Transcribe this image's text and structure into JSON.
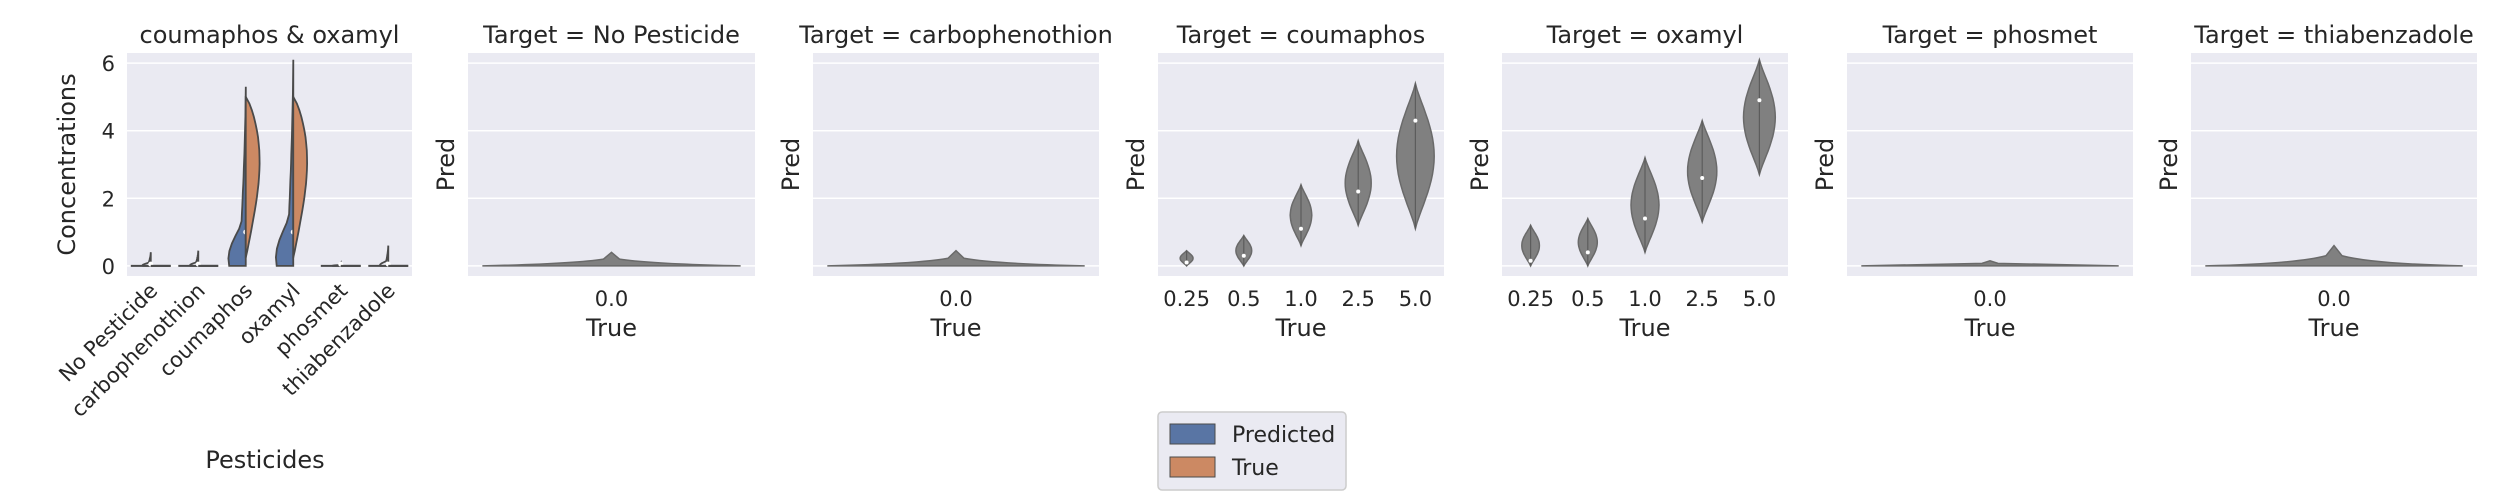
{
  "figure": {
    "legend": {
      "entries": [
        {
          "label": "Predicted",
          "color": "#5975a4"
        },
        {
          "label": "True",
          "color": "#cc8963"
        }
      ]
    }
  },
  "chart_data": [
    {
      "type": "violin",
      "title": "coumaphos & oxamyl",
      "xlabel": "Pesticides",
      "ylabel": "Concentrations",
      "categories": [
        "No Pesticide",
        "carbophenothion",
        "coumaphos",
        "oxamyl",
        "phosmet",
        "thiabenzadole"
      ],
      "yticks": [
        "0",
        "2",
        "4",
        "6"
      ],
      "ylim": [
        -0.3,
        6.3
      ],
      "split": true,
      "series": [
        {
          "name": "Predicted",
          "color": "#5975a4",
          "min": [
            0.0,
            0.0,
            0.0,
            0.0,
            0.0,
            0.0
          ],
          "max": [
            0.4,
            0.45,
            5.3,
            6.1,
            0.1,
            0.6
          ],
          "median": [
            0.05,
            0.05,
            1.0,
            1.0,
            0.05,
            0.05
          ]
        },
        {
          "name": "True",
          "color": "#cc8963",
          "min": [
            0.0,
            0.0,
            0.25,
            0.25,
            0.0,
            0.0
          ],
          "max": [
            0.0,
            0.0,
            5.0,
            5.0,
            0.0,
            0.0
          ],
          "median": [
            0.0,
            0.0,
            1.0,
            1.0,
            0.0,
            0.0
          ]
        }
      ],
      "grid": true,
      "legend": "bottom-center"
    },
    {
      "type": "violin",
      "title": "Target = No Pesticide",
      "xlabel": "True",
      "ylabel": "Pred",
      "categories": [
        "0.0"
      ],
      "ylim": [
        -0.3,
        6.3
      ],
      "violins": [
        {
          "x": "0.0",
          "min": 0.0,
          "max": 0.4,
          "median": 0.05
        }
      ]
    },
    {
      "type": "violin",
      "title": "Target = carbophenothion",
      "xlabel": "True",
      "ylabel": "Pred",
      "categories": [
        "0.0"
      ],
      "ylim": [
        -0.3,
        6.3
      ],
      "violins": [
        {
          "x": "0.0",
          "min": 0.0,
          "max": 0.45,
          "median": 0.02
        }
      ]
    },
    {
      "type": "violin",
      "title": "Target = coumaphos",
      "xlabel": "True",
      "ylabel": "Pred",
      "categories": [
        "0.25",
        "0.5",
        "1.0",
        "2.5",
        "5.0"
      ],
      "ylim": [
        -0.3,
        6.3
      ],
      "violins": [
        {
          "x": "0.25",
          "min": 0.0,
          "max": 0.45,
          "median": 0.1
        },
        {
          "x": "0.5",
          "min": 0.0,
          "max": 0.9,
          "median": 0.3
        },
        {
          "x": "1.0",
          "min": 0.6,
          "max": 2.4,
          "median": 1.1
        },
        {
          "x": "2.5",
          "min": 1.2,
          "max": 3.7,
          "median": 2.2
        },
        {
          "x": "5.0",
          "min": 1.1,
          "max": 5.4,
          "median": 4.3
        }
      ]
    },
    {
      "type": "violin",
      "title": "Target = oxamyl",
      "xlabel": "True",
      "ylabel": "Pred",
      "categories": [
        "0.25",
        "0.5",
        "1.0",
        "2.5",
        "5.0"
      ],
      "ylim": [
        -0.3,
        6.3
      ],
      "violins": [
        {
          "x": "0.25",
          "min": 0.0,
          "max": 1.2,
          "median": 0.15
        },
        {
          "x": "0.5",
          "min": 0.0,
          "max": 1.4,
          "median": 0.4
        },
        {
          "x": "1.0",
          "min": 0.4,
          "max": 3.2,
          "median": 1.4
        },
        {
          "x": "2.5",
          "min": 1.3,
          "max": 4.3,
          "median": 2.6
        },
        {
          "x": "5.0",
          "min": 2.7,
          "max": 6.1,
          "median": 4.9
        }
      ]
    },
    {
      "type": "violin",
      "title": "Target = phosmet",
      "xlabel": "True",
      "ylabel": "Pred",
      "categories": [
        "0.0"
      ],
      "ylim": [
        -0.3,
        6.3
      ],
      "violins": [
        {
          "x": "0.0",
          "min": 0.0,
          "max": 0.15,
          "median": 0.01
        }
      ]
    },
    {
      "type": "violin",
      "title": "Target = thiabenzadole",
      "xlabel": "True",
      "ylabel": "Pred",
      "categories": [
        "0.0"
      ],
      "ylim": [
        -0.3,
        6.3
      ],
      "violins": [
        {
          "x": "0.0",
          "min": 0.0,
          "max": 0.6,
          "median": 0.02
        }
      ]
    }
  ]
}
